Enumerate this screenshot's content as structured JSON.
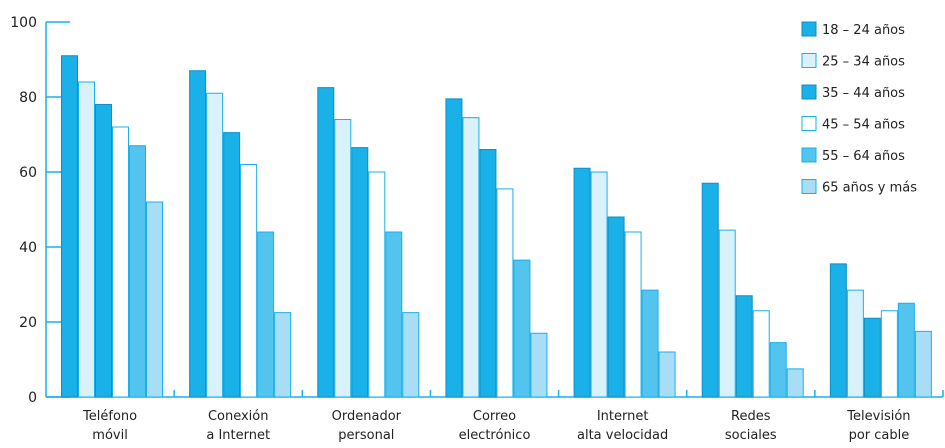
{
  "chart_data": {
    "type": "bar",
    "categories": [
      [
        "Teléfono",
        "móvil"
      ],
      [
        "Conexión",
        "a Internet"
      ],
      [
        "Ordenador",
        "personal"
      ],
      [
        "Correo",
        "electrónico"
      ],
      [
        "Internet",
        "alta velocidad"
      ],
      [
        "Redes",
        "sociales"
      ],
      [
        "Televisión",
        "por cable"
      ]
    ],
    "series": [
      {
        "name": "18 – 24 años",
        "color": "#1ab0e8",
        "stroke": "#0f8fc4",
        "values": [
          91,
          87,
          82.5,
          79.5,
          61,
          57,
          35.5
        ]
      },
      {
        "name": "25 – 34 años",
        "color": "#d9f1fb",
        "stroke": "#1ab0e8",
        "values": [
          84,
          81,
          74,
          74.5,
          60,
          44.5,
          28.5
        ]
      },
      {
        "name": "35 – 44 años",
        "color": "#1ab0e8",
        "stroke": "#0f8fc4",
        "values": [
          78,
          70.5,
          66.5,
          66,
          48,
          27,
          21
        ]
      },
      {
        "name": "45 – 54 años",
        "color": "#ffffff",
        "stroke": "#1ab0e8",
        "values": [
          72,
          62,
          60,
          55.5,
          44,
          23,
          23
        ]
      },
      {
        "name": "55 – 64 años",
        "color": "#52c4ee",
        "stroke": "#1ab0e8",
        "values": [
          67,
          44,
          44,
          36.5,
          28.5,
          14.5,
          25
        ]
      },
      {
        "name": "65 años y más",
        "color": "#a8def5",
        "stroke": "#1ab0e8",
        "values": [
          52,
          22.5,
          22.5,
          17,
          12,
          7.5,
          17.5
        ]
      }
    ],
    "yticks": [
      0,
      20,
      40,
      60,
      80,
      100
    ],
    "ylim": [
      0,
      100
    ],
    "grid": false,
    "legend_position": "top-right"
  }
}
